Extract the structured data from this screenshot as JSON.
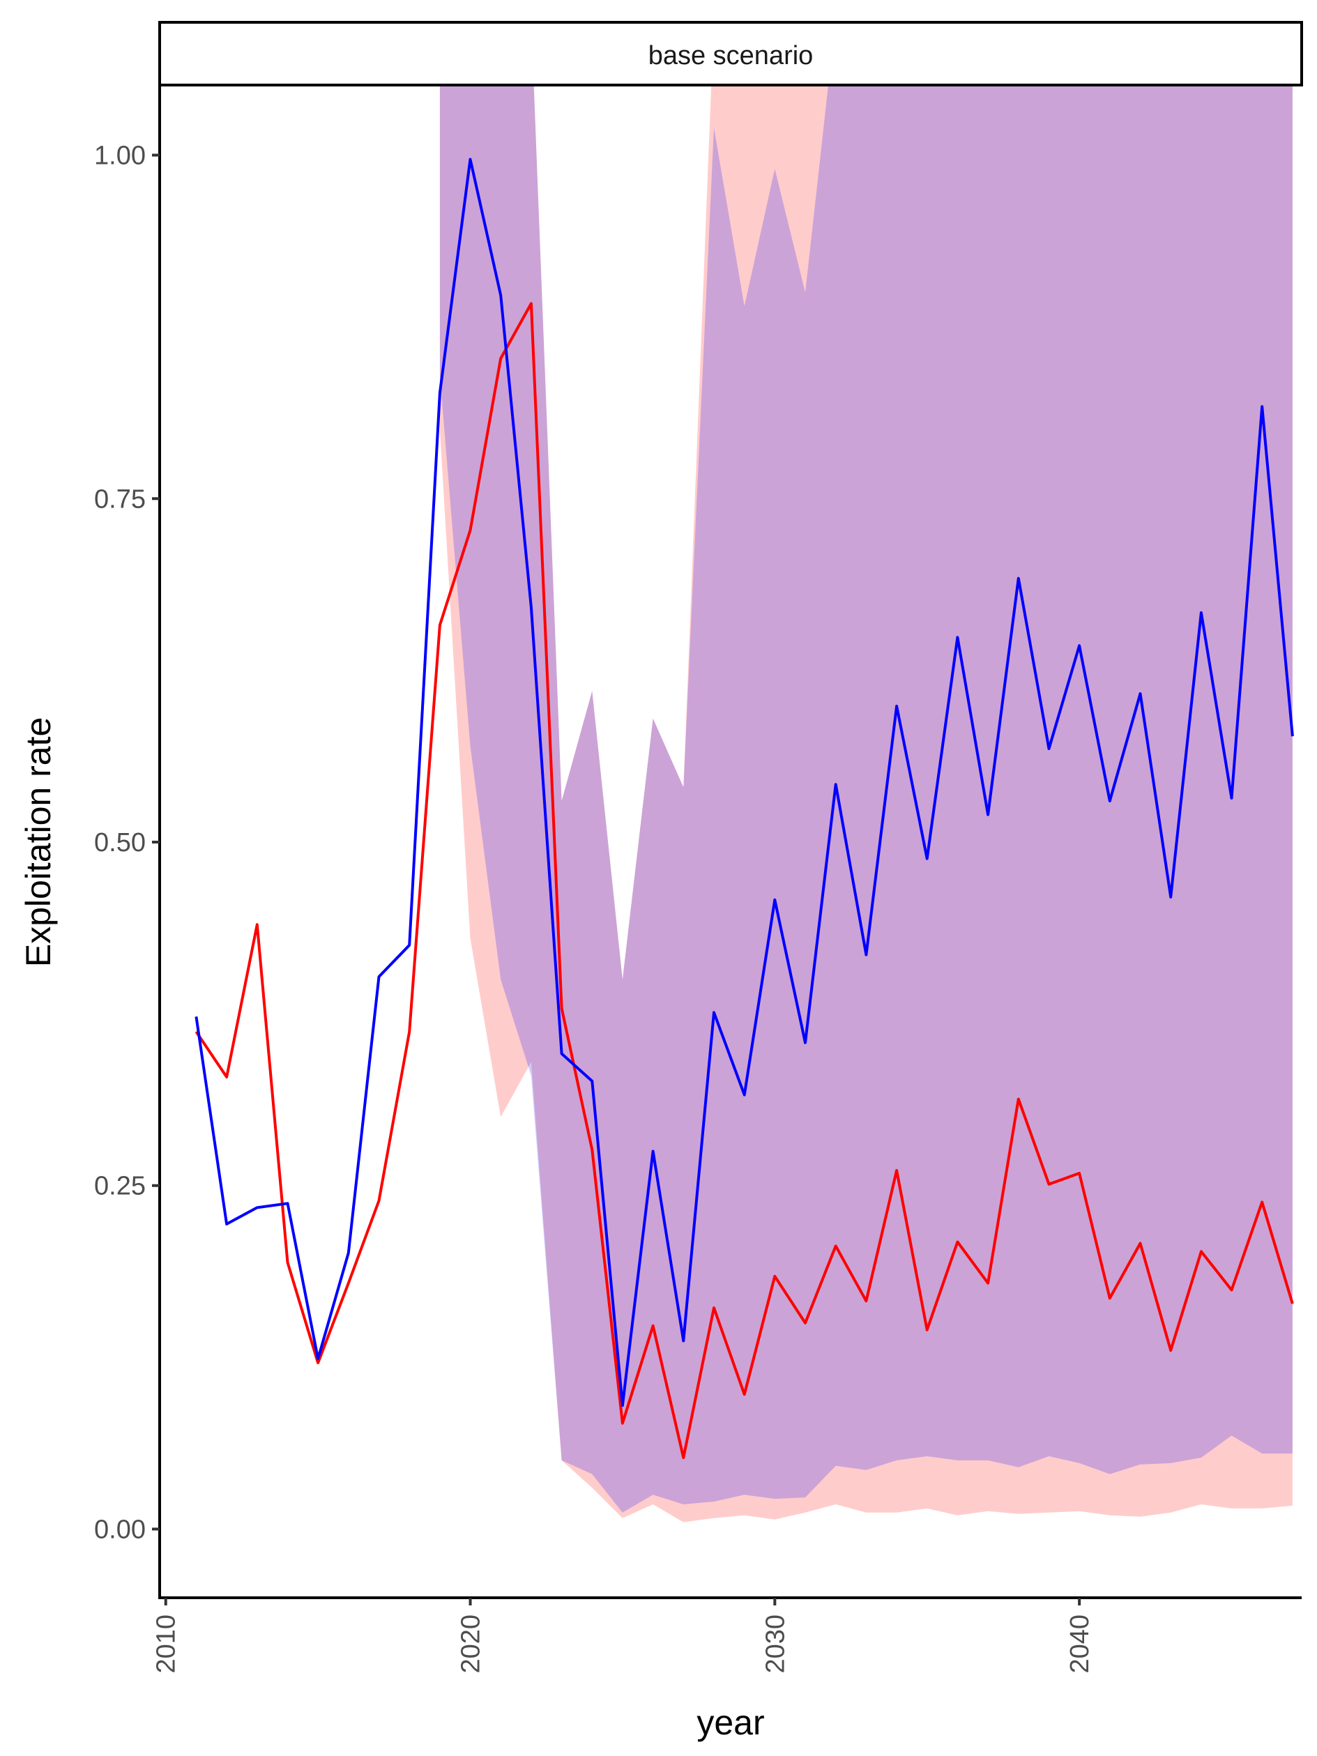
{
  "chart_data": {
    "type": "line",
    "facet_label": "base scenario",
    "xlabel": "year",
    "ylabel": "Exploitation rate",
    "xlim": [
      2009.8,
      2047.3
    ],
    "ylim": [
      -0.05,
      1.05
    ],
    "x_ticks": [
      2010,
      2020,
      2030,
      2040
    ],
    "x_tick_labels": [
      "2010",
      "2020",
      "2030",
      "2040"
    ],
    "y_ticks": [
      0,
      0.25,
      0.5,
      0.75,
      1.0
    ],
    "y_tick_labels": [
      "0.00",
      "0.25",
      "0.50",
      "0.75",
      "1.00"
    ],
    "grid": false,
    "legend": "none",
    "bands": [
      {
        "color": "#ff0000",
        "opacity": 0.2,
        "x": [
          2019,
          2020,
          2021,
          2022,
          2023,
          2024,
          2025,
          2026,
          2027,
          2028,
          2029,
          2030,
          2031,
          2032,
          2033,
          2034,
          2035,
          2036,
          2037,
          2038,
          2039,
          2040,
          2041,
          2042,
          2043,
          2044,
          2045,
          2046,
          2047
        ],
        "lower": [
          0.8,
          0.43,
          0.3,
          0.34,
          0.05,
          0.03,
          0.008,
          0.018,
          0.005,
          0.008,
          0.01,
          0.007,
          0.012,
          0.018,
          0.012,
          0.012,
          0.015,
          0.01,
          0.013,
          0.011,
          0.012,
          0.013,
          0.01,
          0.009,
          0.012,
          0.018,
          0.015,
          0.015,
          0.017
        ],
        "upper": [
          1.1,
          1.1,
          1.1,
          1.1,
          0.53,
          0.61,
          0.4,
          0.59,
          0.54,
          1.1,
          1.1,
          1.1,
          1.1,
          1.1,
          1.1,
          1.1,
          1.1,
          1.1,
          1.1,
          1.1,
          1.1,
          1.1,
          1.1,
          1.1,
          1.1,
          1.1,
          1.1,
          1.1,
          1.1
        ]
      },
      {
        "color": "#0000ff",
        "opacity": 0.2,
        "x": [
          2019,
          2020,
          2021,
          2022,
          2023,
          2024,
          2025,
          2026,
          2027,
          2028,
          2029,
          2030,
          2031,
          2032,
          2033,
          2034,
          2035,
          2036,
          2037,
          2038,
          2039,
          2040,
          2041,
          2042,
          2043,
          2044,
          2045,
          2046,
          2047
        ],
        "lower": [
          0.84,
          0.57,
          0.4,
          0.33,
          0.05,
          0.04,
          0.012,
          0.025,
          0.018,
          0.02,
          0.025,
          0.022,
          0.023,
          0.046,
          0.043,
          0.05,
          0.053,
          0.05,
          0.05,
          0.045,
          0.053,
          0.048,
          0.04,
          0.047,
          0.048,
          0.052,
          0.068,
          0.055,
          0.055
        ],
        "upper": [
          1.1,
          1.1,
          1.1,
          1.1,
          0.53,
          0.61,
          0.4,
          0.59,
          0.54,
          1.02,
          0.89,
          0.99,
          0.9,
          1.1,
          1.1,
          1.1,
          1.1,
          1.1,
          1.1,
          1.1,
          1.1,
          1.1,
          1.1,
          1.1,
          1.1,
          1.1,
          1.1,
          1.1,
          1.1
        ]
      }
    ],
    "series": [
      {
        "color": "#ff0000",
        "x": [
          2011,
          2012,
          2013,
          2014,
          2015,
          2016,
          2017,
          2018,
          2019,
          2020,
          2021,
          2022,
          2023,
          2024,
          2025,
          2026,
          2027,
          2028,
          2029,
          2030,
          2031,
          2032,
          2033,
          2034,
          2035,
          2036,
          2037,
          2038,
          2039,
          2040,
          2041,
          2042,
          2043,
          2044,
          2045,
          2046,
          2047
        ],
        "values": [
          0.362,
          0.329,
          0.44,
          0.194,
          0.121,
          0.179,
          0.239,
          0.362,
          0.658,
          0.727,
          0.852,
          0.892,
          0.379,
          0.276,
          0.077,
          0.148,
          0.052,
          0.161,
          0.098,
          0.184,
          0.15,
          0.206,
          0.166,
          0.261,
          0.145,
          0.209,
          0.179,
          0.313,
          0.251,
          0.259,
          0.168,
          0.208,
          0.13,
          0.202,
          0.174,
          0.238,
          0.164
        ]
      },
      {
        "color": "#0000ff",
        "x": [
          2011,
          2012,
          2013,
          2014,
          2015,
          2016,
          2017,
          2018,
          2019,
          2020,
          2021,
          2022,
          2023,
          2024,
          2025,
          2026,
          2027,
          2028,
          2029,
          2030,
          2031,
          2032,
          2033,
          2034,
          2035,
          2036,
          2037,
          2038,
          2039,
          2040,
          2041,
          2042,
          2043,
          2044,
          2045,
          2046,
          2047
        ],
        "values": [
          0.373,
          0.222,
          0.234,
          0.237,
          0.124,
          0.201,
          0.402,
          0.425,
          0.827,
          0.997,
          0.898,
          0.671,
          0.346,
          0.326,
          0.09,
          0.275,
          0.137,
          0.376,
          0.316,
          0.458,
          0.354,
          0.542,
          0.418,
          0.599,
          0.488,
          0.649,
          0.52,
          0.692,
          0.568,
          0.643,
          0.53,
          0.608,
          0.46,
          0.667,
          0.532,
          0.817,
          0.577
        ]
      }
    ]
  }
}
